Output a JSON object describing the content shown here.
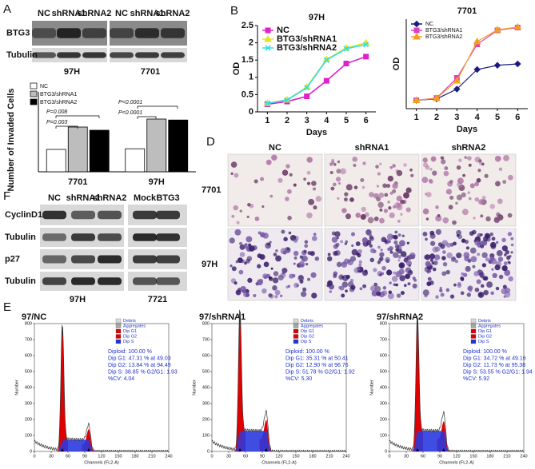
{
  "panel_labels": {
    "a": "A",
    "b": "B",
    "d": "D",
    "e": "E",
    "f": "F"
  },
  "blot_a": {
    "columns": [
      "NC",
      "shRNA1",
      "shRNA2",
      "NC",
      "shRNA1",
      "shRNA2"
    ],
    "rows": [
      "BTG3",
      "Tubulin"
    ],
    "groups": [
      "97H",
      "7701"
    ]
  },
  "chart_data": [
    {
      "type": "bar",
      "y_label": "Number of Invaded Cells",
      "categories": [
        "7701",
        "97H"
      ],
      "series": [
        {
          "name": "NC",
          "color": "#ffffff",
          "values": [
            70,
            72
          ]
        },
        {
          "name": "BTG3/shRNA1",
          "color": "#bdbdbd",
          "values": [
            140,
            165
          ]
        },
        {
          "name": "BTG3/shRNA2",
          "color": "#000000",
          "values": [
            130,
            162
          ]
        }
      ],
      "ylim": [
        0,
        250
      ],
      "annotations": [
        "P=0.008",
        "P=0.003",
        "P<0.0001",
        "P<0.0001"
      ],
      "legend": "upper left"
    },
    {
      "type": "line",
      "title": "97H",
      "x_label": "Days",
      "y_label": "OD",
      "x": [
        1,
        2,
        3,
        4,
        5,
        6
      ],
      "xlim": [
        0.5,
        6.5
      ],
      "xticks": [
        1,
        2,
        3,
        4,
        5,
        6
      ],
      "ylim": [
        0,
        2.5
      ],
      "yticks": [
        0,
        0.5,
        1,
        1.5,
        2,
        2.5
      ],
      "legend": "upper left",
      "series": [
        {
          "name": "NC",
          "color": "#e020c8",
          "marker": "square",
          "values": [
            0.22,
            0.3,
            0.45,
            0.9,
            1.4,
            1.6
          ]
        },
        {
          "name": "BTG3/shRNA1",
          "color": "#e8e020",
          "marker": "triangle",
          "values": [
            0.25,
            0.35,
            0.72,
            1.52,
            1.85,
            2.0
          ]
        },
        {
          "name": "BTG3/shRNA2",
          "color": "#30e0e8",
          "marker": "x",
          "values": [
            0.25,
            0.34,
            0.7,
            1.5,
            1.83,
            1.95
          ]
        }
      ]
    },
    {
      "type": "line",
      "title": "7701",
      "x_label": "Days",
      "y_label": "OD",
      "x": [
        1,
        2,
        3,
        4,
        5,
        6
      ],
      "xlim": [
        0.5,
        6.5
      ],
      "xticks": [
        1,
        2,
        3,
        4,
        5,
        6
      ],
      "ylim": [
        0,
        3.2
      ],
      "legend": "upper left",
      "series": [
        {
          "name": "NC",
          "color": "#1a1a80",
          "marker": "diamond",
          "values": [
            0.3,
            0.35,
            0.7,
            1.4,
            1.55,
            1.6
          ]
        },
        {
          "name": "BTG3/shRNA1",
          "color": "#e040c0",
          "marker": "square",
          "values": [
            0.3,
            0.38,
            1.1,
            2.3,
            2.8,
            2.9
          ]
        },
        {
          "name": "BTG3/shRNA2",
          "color": "#f0a020",
          "marker": "triangle",
          "values": [
            0.3,
            0.37,
            1.0,
            2.4,
            2.82,
            2.92
          ]
        }
      ]
    }
  ],
  "micrographs": {
    "columns": [
      "NC",
      "shRNA1",
      "shRNA2"
    ],
    "rows": [
      "7701",
      "97H"
    ]
  },
  "blot_f": {
    "columns": [
      "NC",
      "shRNA1",
      "shRNA2",
      "Mock",
      "BTG3"
    ],
    "rows": [
      "CyclinD1",
      "Tubulin",
      "p27",
      "Tubulin"
    ],
    "groups": [
      "97H",
      "7721"
    ]
  },
  "cell_cycle": {
    "legend": [
      "Debris",
      "Aggregates",
      "Dip G1",
      "Dip G2",
      "Dip S"
    ],
    "x_label": "Channels (FL2-A)",
    "y_label": "Number",
    "xlim": [
      0,
      240
    ],
    "xticks": [
      0,
      30,
      60,
      90,
      120,
      150,
      180,
      210,
      240
    ],
    "ylim": [
      0,
      800
    ],
    "yticks": [
      0,
      100,
      200,
      300,
      400,
      500,
      600,
      700,
      800
    ],
    "panels": [
      {
        "title": "97/NC",
        "stats": [
          "Diploid: 100.00 %",
          "Dip G1: 47.31 % at 49.03",
          "Dip G2: 13.84 % at 94.49",
          "Dip S: 38.85 %  G2/G1: 1.93",
          "%CV: 4.04"
        ]
      },
      {
        "title": "97/shRNA1",
        "stats": [
          "Diploid: 100.00 %",
          "Dip G1: 35.31 % at 50.41",
          "Dip G2: 12.90 % at 96.76",
          "Dip S: 51.78 %  G2/G1: 1.92",
          "%CV: 5.30"
        ]
      },
      {
        "title": "97/shRNA2",
        "stats": [
          "Diploid: 100.00 %",
          "Dip G1: 34.72 % at 49.16",
          "Dip G2: 11.73 % at 95.38",
          "Dip S: 53.55 %  G2/G1: 1.94",
          "%CV: 5.92"
        ]
      }
    ]
  }
}
